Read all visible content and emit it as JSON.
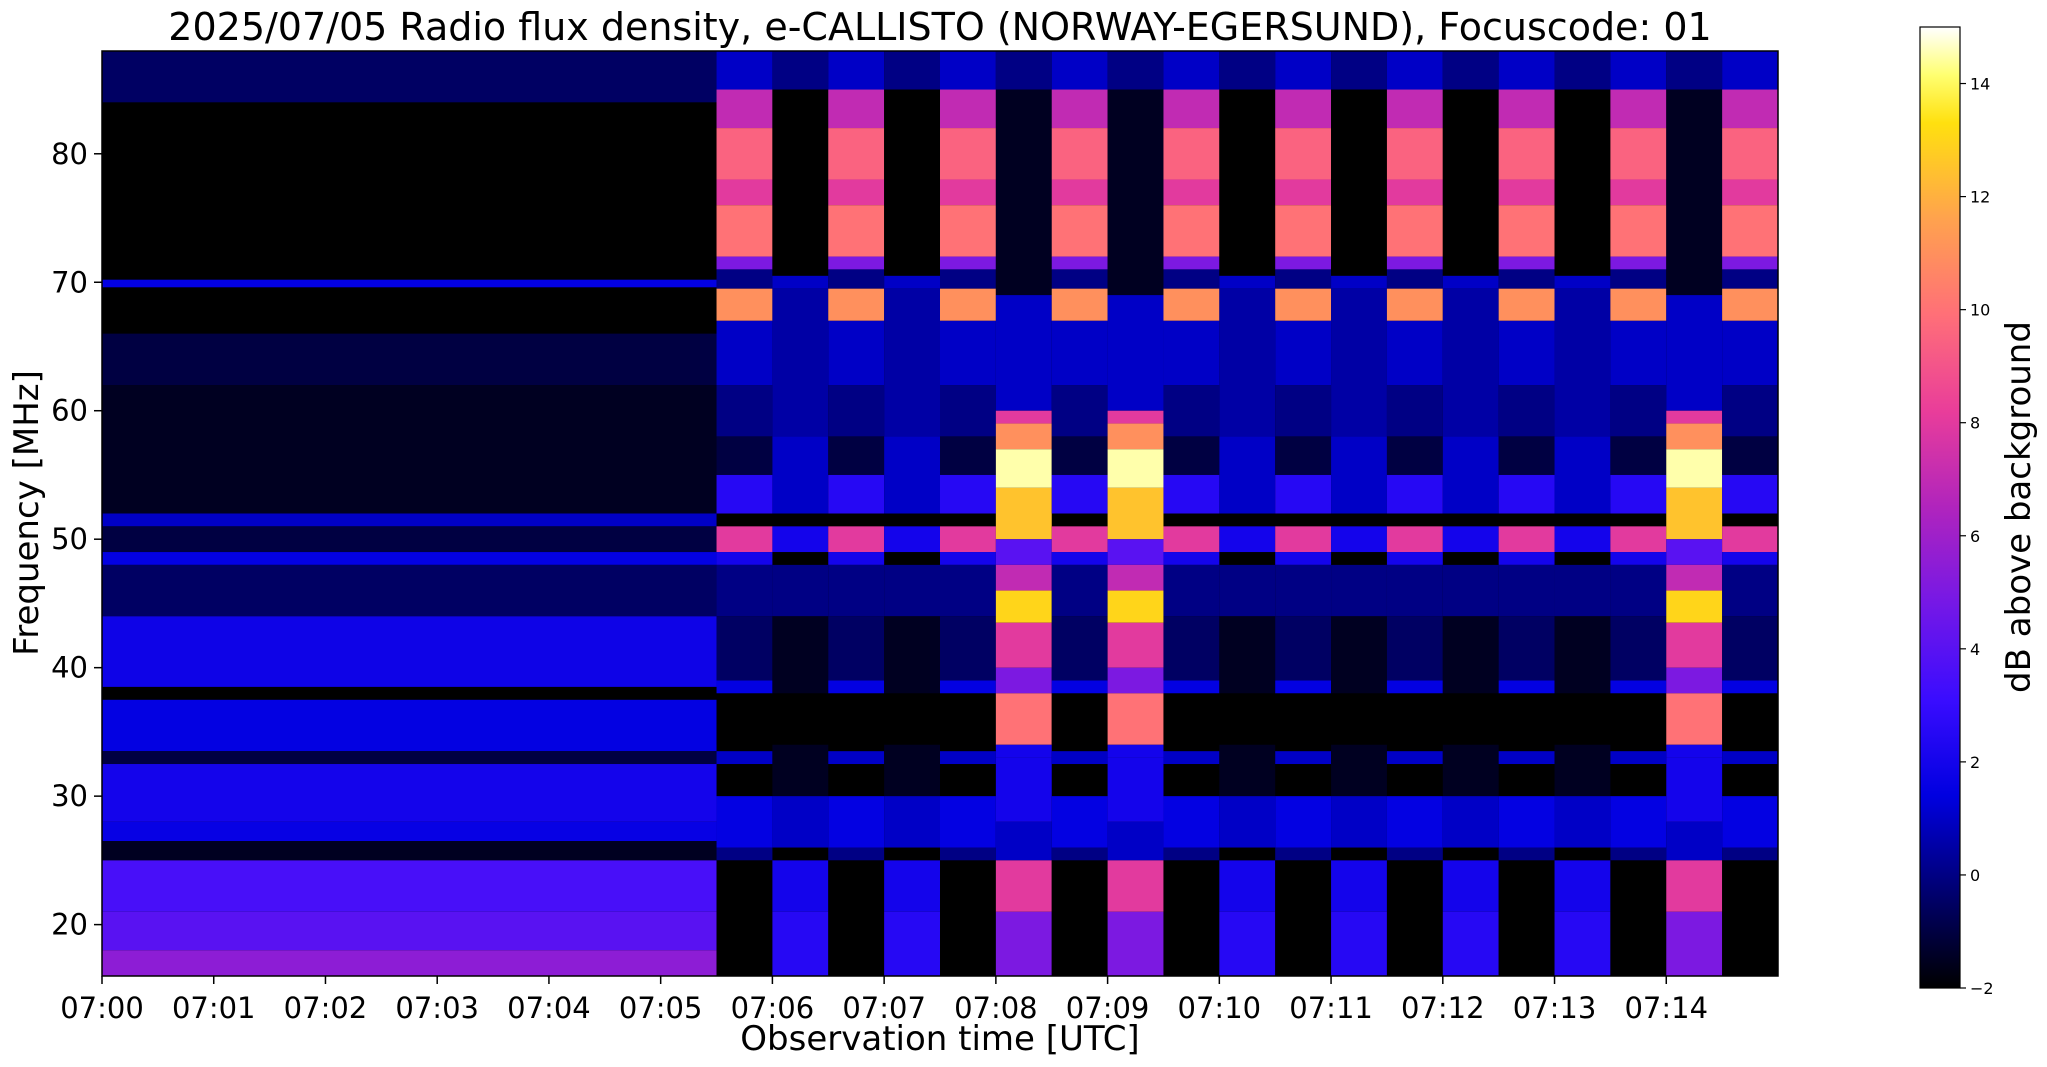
{
  "chart_data": {
    "type": "heatmap",
    "title": "2025/07/05  Radio flux density, e-CALLISTO (NORWAY-EGERSUND), Focuscode: 01",
    "xlabel": "Observation time [UTC]",
    "ylabel": "Frequency [MHz]",
    "colorbar_label": "dB above background",
    "colormap": "gnuplot2",
    "xlim": [
      "07:00",
      "07:15"
    ],
    "ylim": [
      16,
      88
    ],
    "x_ticks": [
      "07:00",
      "07:01",
      "07:02",
      "07:03",
      "07:04",
      "07:05",
      "07:06",
      "07:07",
      "07:08",
      "07:09",
      "07:10",
      "07:11",
      "07:12",
      "07:13",
      "07:14"
    ],
    "y_ticks": [
      20,
      30,
      40,
      50,
      60,
      70,
      80
    ],
    "colorbar_range": [
      -2,
      15
    ],
    "colorbar_ticks": [
      -2,
      0,
      2,
      4,
      6,
      8,
      10,
      12,
      14
    ],
    "quiet_period": {
      "start": "07:00",
      "end": "07:05:30",
      "description_level_db": [
        -2,
        6
      ]
    },
    "switching_period": {
      "start": "07:05:30",
      "end": "07:15",
      "segment_seconds": 30,
      "segments": [
        {
          "start": "07:05:30",
          "end": "07:06:00",
          "type": "active"
        },
        {
          "start": "07:06:00",
          "end": "07:06:30",
          "type": "low"
        },
        {
          "start": "07:06:30",
          "end": "07:07:00",
          "type": "active"
        },
        {
          "start": "07:07:00",
          "end": "07:07:30",
          "type": "low"
        },
        {
          "start": "07:07:30",
          "end": "07:08:00",
          "type": "active"
        },
        {
          "start": "07:08:00",
          "end": "07:08:30",
          "type": "burst"
        },
        {
          "start": "07:08:30",
          "end": "07:09:00",
          "type": "active"
        },
        {
          "start": "07:09:00",
          "end": "07:09:30",
          "type": "burst"
        },
        {
          "start": "07:09:30",
          "end": "07:10:00",
          "type": "active"
        },
        {
          "start": "07:10:00",
          "end": "07:10:30",
          "type": "low"
        },
        {
          "start": "07:10:30",
          "end": "07:11:00",
          "type": "active"
        },
        {
          "start": "07:11:00",
          "end": "07:11:30",
          "type": "low"
        },
        {
          "start": "07:11:30",
          "end": "07:12:00",
          "type": "active"
        },
        {
          "start": "07:12:00",
          "end": "07:12:30",
          "type": "low"
        },
        {
          "start": "07:12:30",
          "end": "07:13:00",
          "type": "active"
        },
        {
          "start": "07:13:00",
          "end": "07:13:30",
          "type": "low"
        },
        {
          "start": "07:13:30",
          "end": "07:14:00",
          "type": "active"
        },
        {
          "start": "07:14:00",
          "end": "07:14:30",
          "type": "burst"
        },
        {
          "start": "07:14:30",
          "end": "07:15:00",
          "type": "active"
        }
      ]
    },
    "grid": false
  }
}
